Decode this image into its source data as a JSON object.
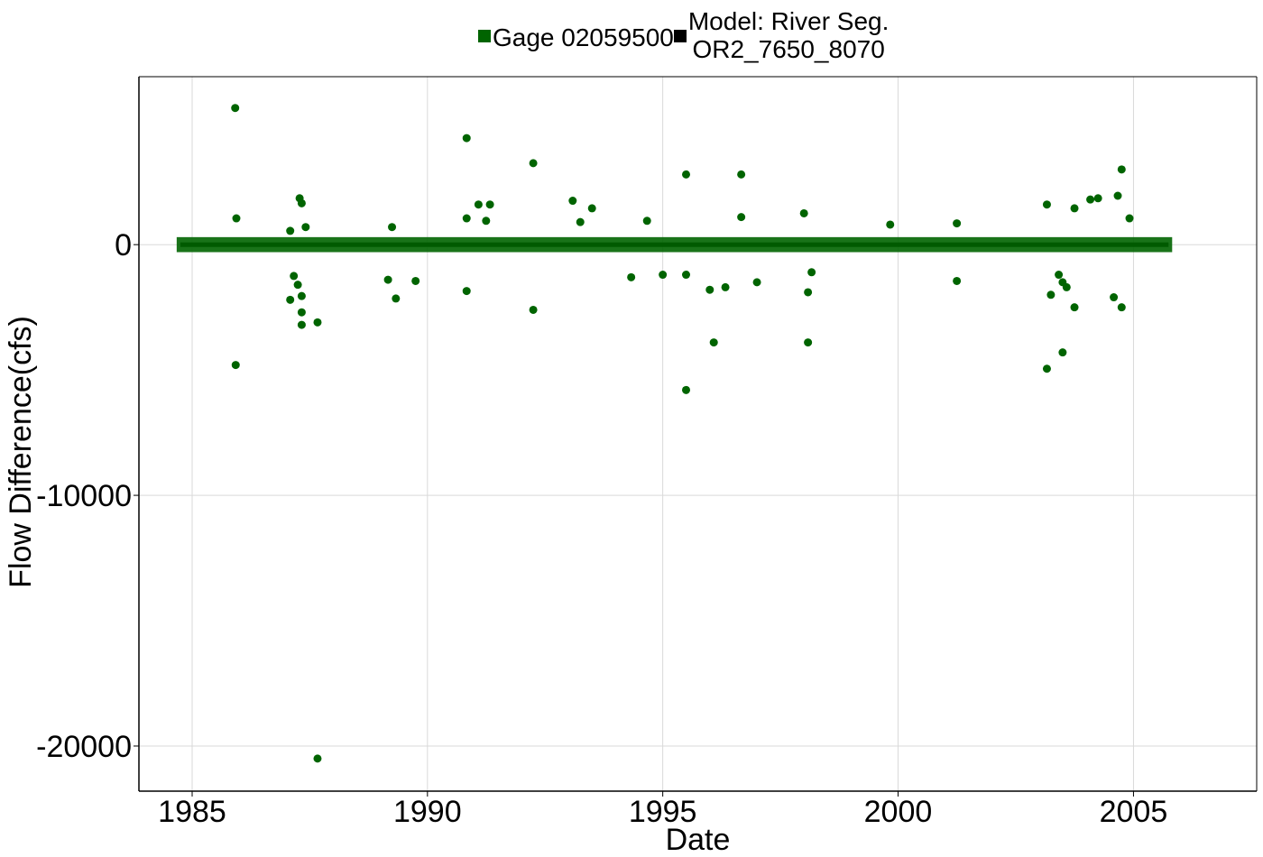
{
  "chart_data": {
    "type": "scatter",
    "title": "",
    "xlabel": "Date",
    "ylabel": "Flow Difference(cfs)",
    "xlim": [
      "1983-11-15",
      "2007-08-15"
    ],
    "ylim": [
      -21800,
      6700
    ],
    "x_ticks": [
      "1985",
      "1990",
      "1995",
      "2000",
      "2005"
    ],
    "y_ticks": [
      0,
      -10000,
      -20000
    ],
    "y_tick_labels": [
      "0",
      "-10000",
      "-20000"
    ],
    "grid": true,
    "legend_position": "top",
    "series": [
      {
        "name": "Gage 02059500",
        "color": "#006400",
        "marker": "circle",
        "points": [
          [
            "1985-12-01",
            5450
          ],
          [
            "1985-12-05",
            -4800
          ],
          [
            "1985-12-10",
            1050
          ],
          [
            "1987-04-15",
            1850
          ],
          [
            "1987-05-01",
            1650
          ],
          [
            "1987-06-01",
            700
          ],
          [
            "1987-02-01",
            550
          ],
          [
            "1987-02-01",
            -2200
          ],
          [
            "1987-03-01",
            -1250
          ],
          [
            "1987-04-01",
            -1600
          ],
          [
            "1987-05-01",
            -2050
          ],
          [
            "1987-05-01",
            -2700
          ],
          [
            "1987-05-01",
            -3200
          ],
          [
            "1987-09-01",
            -3100
          ],
          [
            "1987-09-01",
            -20500
          ],
          [
            "1989-04-01",
            700
          ],
          [
            "1989-03-01",
            -1400
          ],
          [
            "1989-05-01",
            -2150
          ],
          [
            "1989-10-01",
            -1450
          ],
          [
            "1990-11-01",
            4250
          ],
          [
            "1990-11-01",
            -1850
          ],
          [
            "1990-11-01",
            1050
          ],
          [
            "1991-02-01",
            1600
          ],
          [
            "1991-05-01",
            1600
          ],
          [
            "1991-04-01",
            950
          ],
          [
            "1992-04-01",
            3250
          ],
          [
            "1992-04-01",
            -2600
          ],
          [
            "1993-02-01",
            1750
          ],
          [
            "1993-04-01",
            900
          ],
          [
            "1993-07-01",
            1450
          ],
          [
            "1994-05-01",
            -1300
          ],
          [
            "1994-09-01",
            950
          ],
          [
            "1995-01-01",
            -1200
          ],
          [
            "1995-07-01",
            2800
          ],
          [
            "1995-07-01",
            -1200
          ],
          [
            "1995-07-01",
            -5800
          ],
          [
            "1996-01-01",
            -1800
          ],
          [
            "1996-02-01",
            -3900
          ],
          [
            "1996-05-01",
            -1700
          ],
          [
            "1996-09-01",
            2800
          ],
          [
            "1996-09-01",
            1100
          ],
          [
            "1997-01-01",
            -1500
          ],
          [
            "1998-01-01",
            1250
          ],
          [
            "1998-02-01",
            -1900
          ],
          [
            "1998-02-01",
            -3900
          ],
          [
            "1998-03-01",
            -1100
          ],
          [
            "1999-11-01",
            800
          ],
          [
            "2001-04-01",
            850
          ],
          [
            "2001-04-01",
            -1450
          ],
          [
            "2003-03-01",
            1600
          ],
          [
            "2003-03-01",
            -4950
          ],
          [
            "2003-04-01",
            -2000
          ],
          [
            "2003-06-01",
            -1200
          ],
          [
            "2003-07-01",
            -4300
          ],
          [
            "2003-07-01",
            -1500
          ],
          [
            "2003-08-01",
            -1700
          ],
          [
            "2003-10-01",
            -2500
          ],
          [
            "2003-10-01",
            1450
          ],
          [
            "2004-02-01",
            1800
          ],
          [
            "2004-04-01",
            1850
          ],
          [
            "2004-09-01",
            1950
          ],
          [
            "2004-08-01",
            -2100
          ],
          [
            "2004-10-01",
            -2500
          ],
          [
            "2004-10-01",
            3000
          ],
          [
            "2004-12-01",
            1050
          ]
        ]
      },
      {
        "name": "Model: River Seg.\nOR2_7650_8070",
        "color": "#000000",
        "marker": "line",
        "x_range": [
          "1984-10-01",
          "2005-09-30"
        ],
        "value": 0
      }
    ],
    "annotations": []
  },
  "legend": {
    "item1": "Gage 02059500",
    "item2": "Model: River Seg.\nOR2_7650_8070"
  }
}
